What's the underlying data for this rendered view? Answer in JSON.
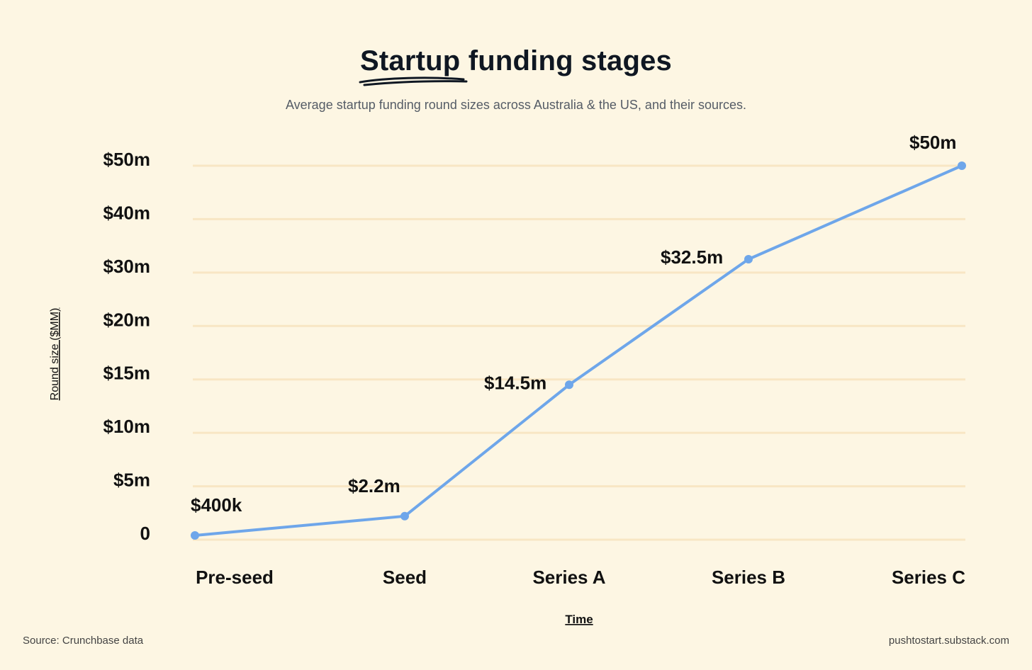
{
  "header": {
    "title_underlined": "Startup",
    "title_rest": " funding stages",
    "subtitle": "Average startup funding round sizes across Australia & the US, and their sources."
  },
  "footer": {
    "source": "Source: Crunchbase data",
    "site": "pushtostart.substack.com"
  },
  "colors": {
    "background": "#fdf6e3",
    "line": "#6ea6ea",
    "grid": "#f8e6c4"
  },
  "chart_data": {
    "type": "line",
    "xlabel": "Time",
    "ylabel": "Round size ($MM)",
    "categories": [
      "Pre-seed",
      "Seed",
      "Series A",
      "Series B",
      "Series C"
    ],
    "y_ticks": [
      {
        "value": 0,
        "label": "0"
      },
      {
        "value": 5,
        "label": "$5m"
      },
      {
        "value": 10,
        "label": "$10m"
      },
      {
        "value": 15,
        "label": "$15m"
      },
      {
        "value": 20,
        "label": "$20m"
      },
      {
        "value": 30,
        "label": "$30m"
      },
      {
        "value": 40,
        "label": "$40m"
      },
      {
        "value": 50,
        "label": "$50m"
      }
    ],
    "series": [
      {
        "values": [
          0.4,
          2.2,
          14.5,
          32.5,
          50
        ],
        "labels": [
          "$400k",
          "$2.2m",
          "$14.5m",
          "$32.5m",
          "$50m"
        ]
      }
    ],
    "grid": true,
    "legend": "none"
  }
}
